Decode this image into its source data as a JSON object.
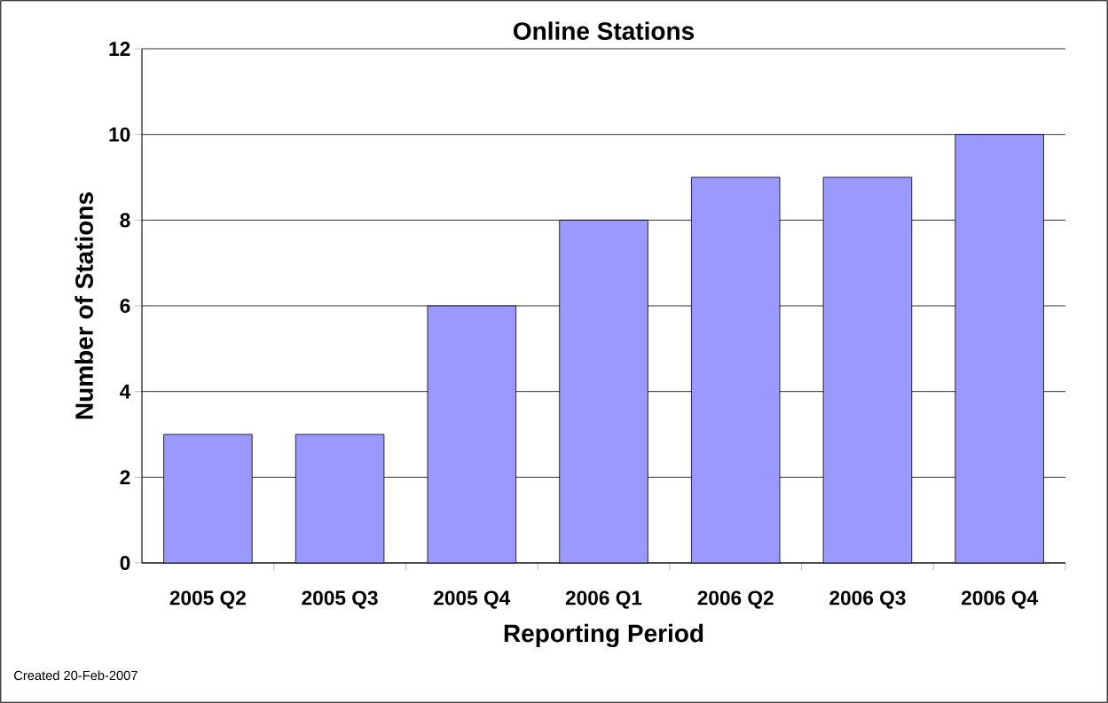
{
  "chart_data": {
    "type": "bar",
    "title": "Online Stations",
    "xlabel": "Reporting Period",
    "ylabel": "Number of Stations",
    "categories": [
      "2005 Q2",
      "2005 Q3",
      "2005 Q4",
      "2006 Q1",
      "2006 Q2",
      "2006 Q3",
      "2006 Q4"
    ],
    "values": [
      3,
      3,
      6,
      8,
      9,
      9,
      10
    ],
    "color": "#9999ff",
    "ylim": [
      0,
      12
    ],
    "yticks": [
      0,
      2,
      4,
      6,
      8,
      10,
      12
    ],
    "grid": "y",
    "annotations": [
      "Created 20-Feb-2007"
    ]
  }
}
